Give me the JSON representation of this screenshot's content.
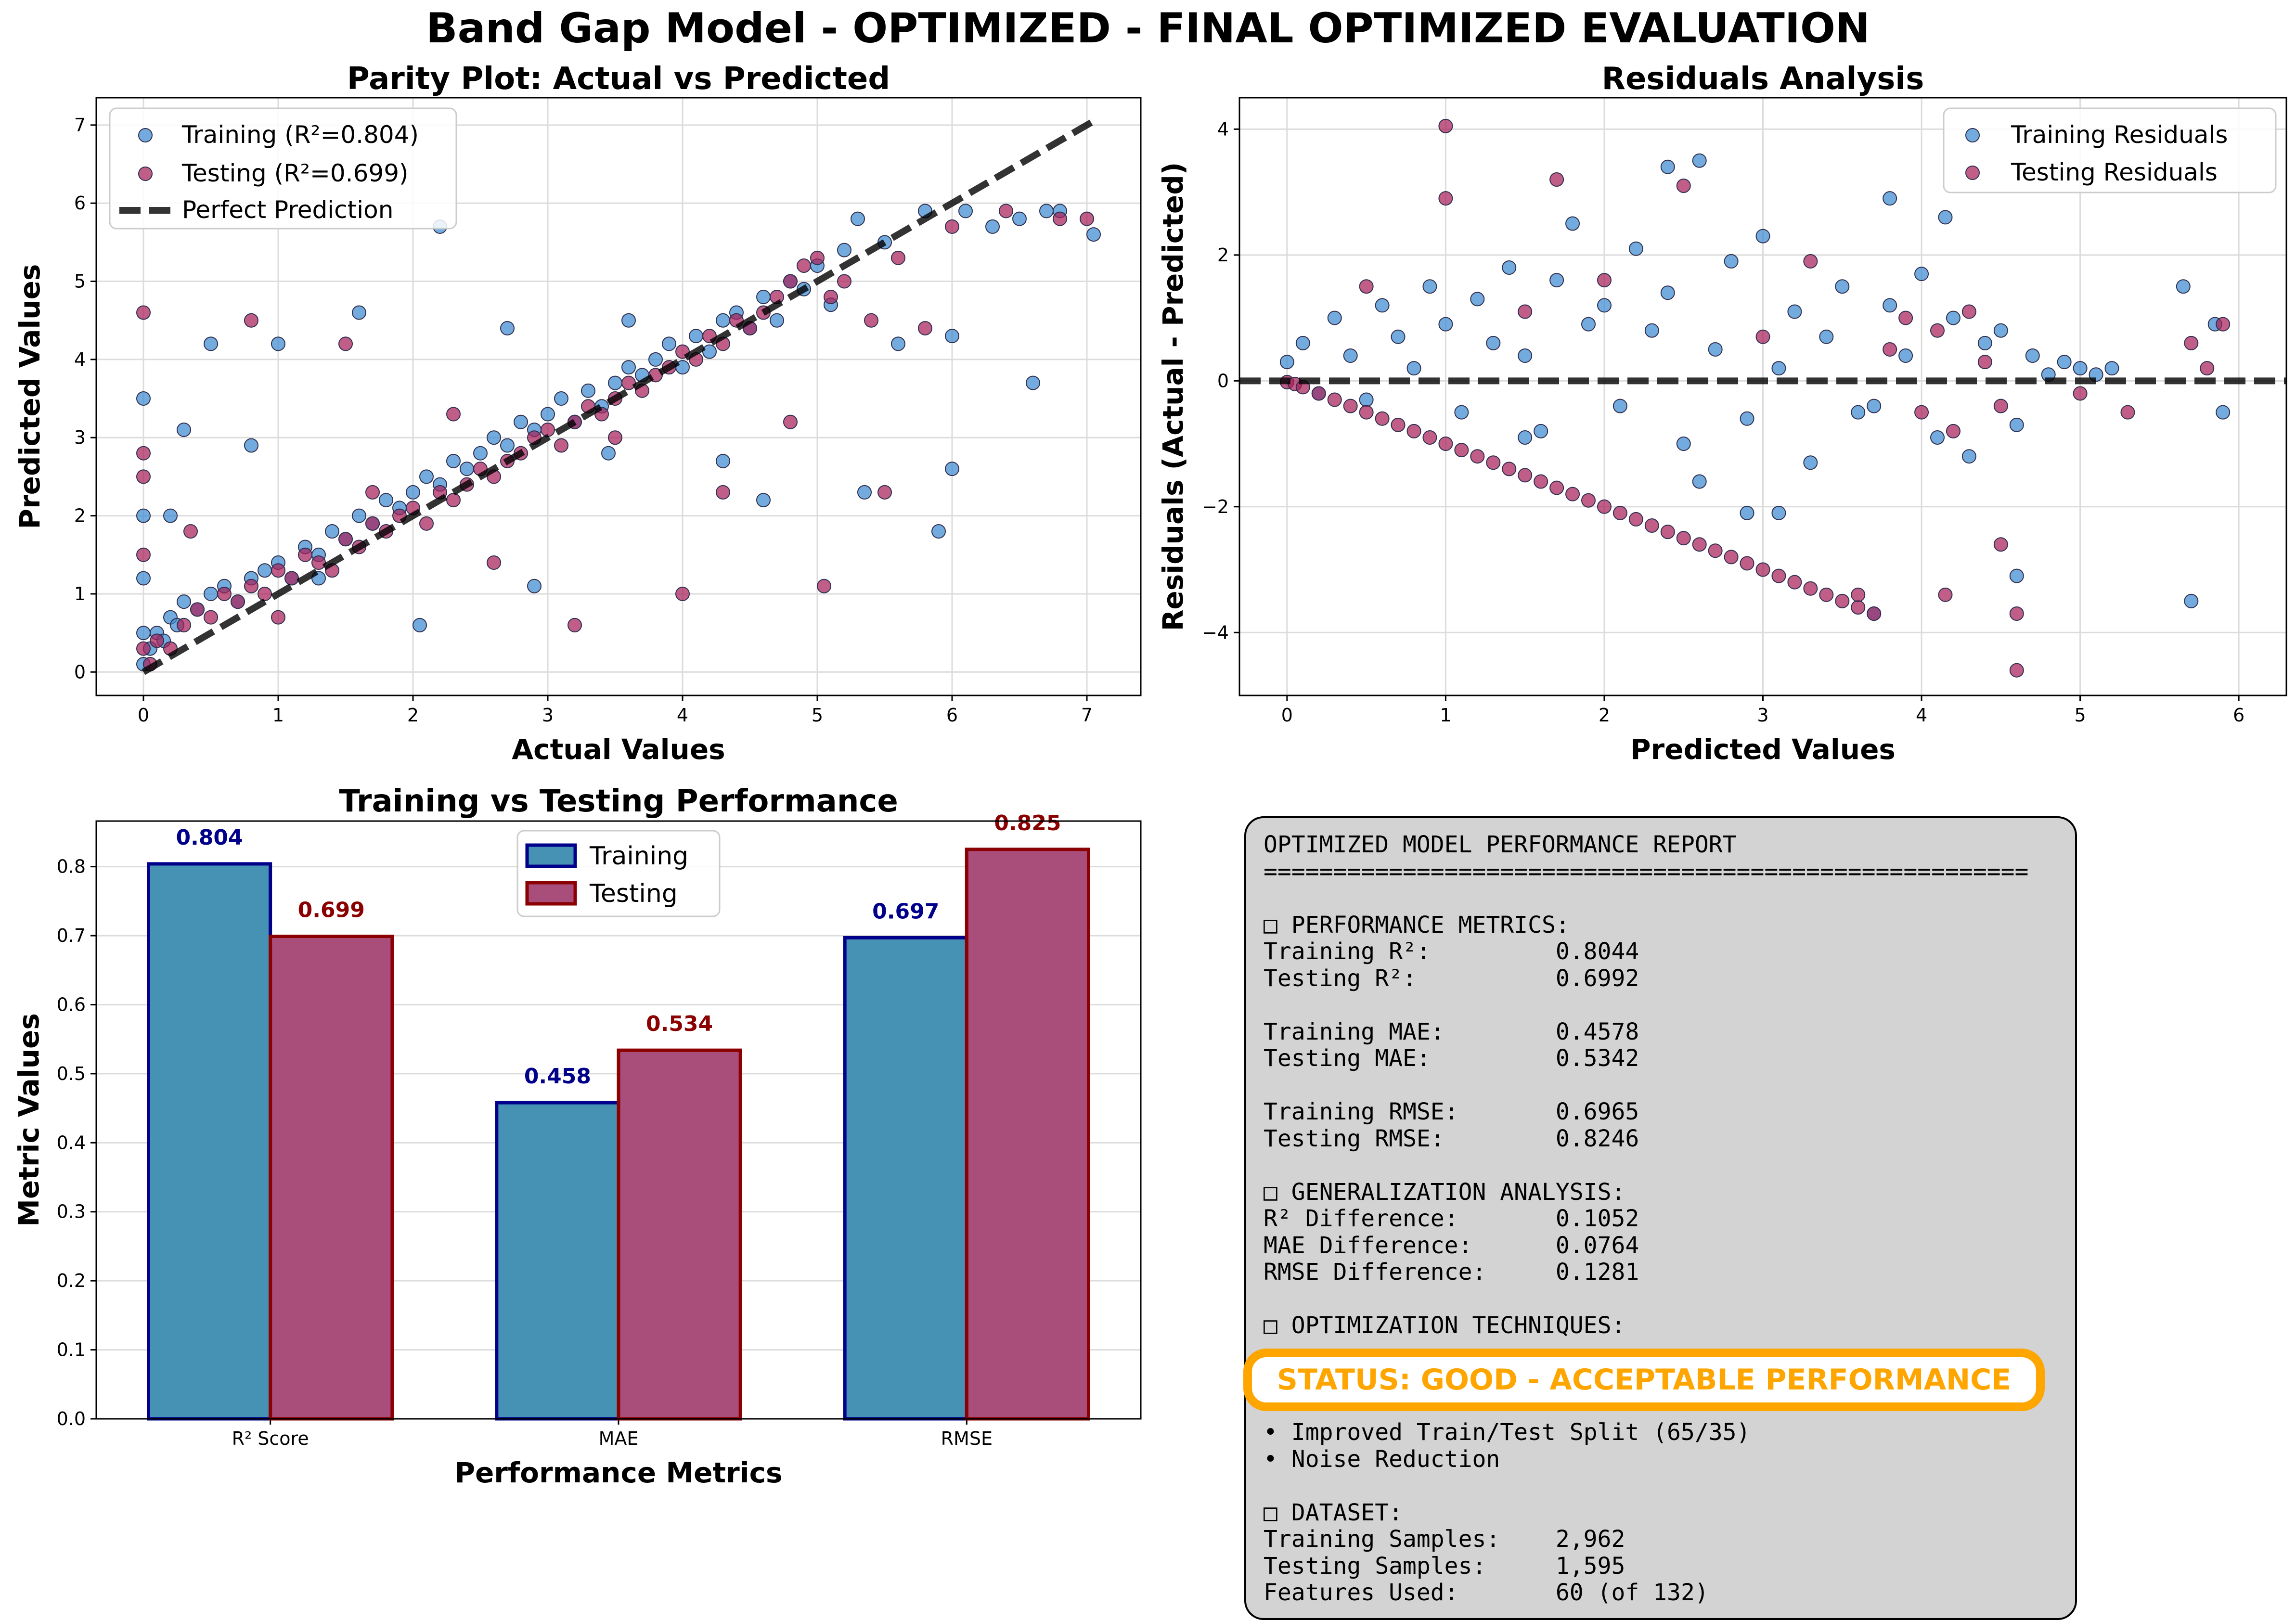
{
  "suptitle": "Band Gap Model - OPTIMIZED - FINAL OPTIMIZED EVALUATION",
  "colors": {
    "train": "#3d8ad1",
    "test": "#a8205a",
    "bar_train": "#4592b4",
    "bar_test": "#a94d7b",
    "train_label": "#00008b",
    "test_label": "#8b0000",
    "status": "#ffa500"
  },
  "chart_data": [
    {
      "type": "scatter",
      "title": "Parity Plot: Actual vs Predicted",
      "xlabel": "Actual Values",
      "ylabel": "Predicted Values",
      "xlim": [
        -0.35,
        7.4
      ],
      "ylim": [
        -0.3,
        7.35
      ],
      "xticks": [
        "0",
        "1",
        "2",
        "3",
        "4",
        "5",
        "6",
        "7"
      ],
      "yticks": [
        "0",
        "1",
        "2",
        "3",
        "4",
        "5",
        "6",
        "7"
      ],
      "grid": true,
      "legend": {
        "position": "top-left",
        "entries": [
          "Training (R²=0.804)",
          "Testing (R²=0.699)",
          "Perfect Prediction"
        ]
      },
      "reference_line": {
        "name": "Perfect Prediction",
        "x": [
          0,
          7.05
        ],
        "y": [
          0,
          7.05
        ],
        "style": "dashed"
      },
      "series": [
        {
          "name": "Training (R²=0.804)",
          "x": [
            0.0,
            0.0,
            0.0,
            0.0,
            0.0,
            0.05,
            0.1,
            0.15,
            0.2,
            0.25,
            0.3,
            0.4,
            0.5,
            0.6,
            0.7,
            0.8,
            0.9,
            1.0,
            1.1,
            1.2,
            1.3,
            1.4,
            1.5,
            1.6,
            1.7,
            1.8,
            1.9,
            2.0,
            2.1,
            2.2,
            2.3,
            2.4,
            2.5,
            2.6,
            2.7,
            2.8,
            2.9,
            3.0,
            3.1,
            3.2,
            3.3,
            3.4,
            3.5,
            3.6,
            3.7,
            3.8,
            3.9,
            4.0,
            4.1,
            4.2,
            4.3,
            4.4,
            4.5,
            4.6,
            4.7,
            4.8,
            4.9,
            5.0,
            5.1,
            5.2,
            5.3,
            5.5,
            5.6,
            5.8,
            6.0,
            6.1,
            6.3,
            6.5,
            6.7,
            6.8,
            7.05,
            0.3,
            0.5,
            1.0,
            1.6,
            2.2,
            2.7,
            3.6,
            4.3,
            5.35,
            6.0,
            6.6,
            0.2,
            0.8,
            1.3,
            2.05,
            2.9,
            3.45,
            4.6,
            5.9
          ],
          "y": [
            0.1,
            0.5,
            1.2,
            2.0,
            3.5,
            0.3,
            0.5,
            0.4,
            0.7,
            0.6,
            0.9,
            0.8,
            1.0,
            1.1,
            0.9,
            1.2,
            1.3,
            1.4,
            1.2,
            1.6,
            1.5,
            1.8,
            1.7,
            2.0,
            1.9,
            2.2,
            2.1,
            2.3,
            2.5,
            2.4,
            2.7,
            2.6,
            2.8,
            3.0,
            2.9,
            3.2,
            3.1,
            3.3,
            3.5,
            3.2,
            3.6,
            3.4,
            3.7,
            3.9,
            3.8,
            4.0,
            4.2,
            3.9,
            4.3,
            4.1,
            4.5,
            4.6,
            4.4,
            4.8,
            4.5,
            5.0,
            4.9,
            5.2,
            4.7,
            5.4,
            5.8,
            5.5,
            4.2,
            5.9,
            4.3,
            5.9,
            5.7,
            5.8,
            5.9,
            5.9,
            5.6,
            3.1,
            4.2,
            4.2,
            4.6,
            5.7,
            4.4,
            4.5,
            2.7,
            2.3,
            2.6,
            3.7,
            2.0,
            2.9,
            1.2,
            0.6,
            1.1,
            2.8,
            2.2,
            1.8
          ]
        },
        {
          "name": "Testing (R²=0.699)",
          "x": [
            0.0,
            0.0,
            0.0,
            0.0,
            0.05,
            0.1,
            0.2,
            0.3,
            0.4,
            0.5,
            0.6,
            0.7,
            0.8,
            0.9,
            1.0,
            1.1,
            1.2,
            1.3,
            1.4,
            1.5,
            1.6,
            1.7,
            1.8,
            1.9,
            2.0,
            2.1,
            2.2,
            2.3,
            2.4,
            2.5,
            2.6,
            2.7,
            2.8,
            2.9,
            3.0,
            3.1,
            3.2,
            3.3,
            3.4,
            3.5,
            3.6,
            3.7,
            3.8,
            3.9,
            4.0,
            4.1,
            4.2,
            4.3,
            4.4,
            4.5,
            4.6,
            4.7,
            4.8,
            4.9,
            5.0,
            5.1,
            5.2,
            5.4,
            5.6,
            5.8,
            6.0,
            6.4,
            6.8,
            7.0,
            0.0,
            0.8,
            1.5,
            2.3,
            3.5,
            4.3,
            5.05,
            5.5,
            0.35,
            1.0,
            1.7,
            2.6,
            3.2,
            4.0,
            4.8
          ],
          "y": [
            4.6,
            2.8,
            1.5,
            0.3,
            0.1,
            0.4,
            0.3,
            0.6,
            0.8,
            0.7,
            1.0,
            0.9,
            1.1,
            1.0,
            1.3,
            1.2,
            1.5,
            1.4,
            1.3,
            1.7,
            1.6,
            1.9,
            1.8,
            2.0,
            2.1,
            1.9,
            2.3,
            2.2,
            2.4,
            2.6,
            2.5,
            2.7,
            2.8,
            3.0,
            3.1,
            2.9,
            3.2,
            3.4,
            3.3,
            3.5,
            3.7,
            3.6,
            3.8,
            3.9,
            4.1,
            4.0,
            4.3,
            4.2,
            4.5,
            4.4,
            4.6,
            4.8,
            5.0,
            5.2,
            5.3,
            4.8,
            5.0,
            4.5,
            5.3,
            4.4,
            5.7,
            5.9,
            5.8,
            5.8,
            2.5,
            4.5,
            4.2,
            3.3,
            3.0,
            2.3,
            1.1,
            2.3,
            1.8,
            0.7,
            2.3,
            1.4,
            0.6,
            1.0,
            3.2
          ]
        }
      ]
    },
    {
      "type": "scatter",
      "title": "Residuals Analysis",
      "xlabel": "Predicted Values",
      "ylabel": "Residuals (Actual - Predicted)",
      "xlim": [
        -0.3,
        6.3
      ],
      "ylim": [
        -5.0,
        4.5
      ],
      "xticks": [
        "0",
        "1",
        "2",
        "3",
        "4",
        "5",
        "6"
      ],
      "yticks": [
        "−4",
        "−2",
        "0",
        "2",
        "4"
      ],
      "grid": true,
      "legend": {
        "position": "top-right",
        "entries": [
          "Training Residuals",
          "Testing Residuals"
        ]
      },
      "reference_line": {
        "x": [
          -0.3,
          6.3
        ],
        "y": [
          0,
          0
        ],
        "style": "dashed"
      },
      "series": [
        {
          "name": "Training Residuals",
          "x": [
            0.0,
            0.1,
            0.2,
            0.3,
            0.4,
            0.5,
            0.6,
            0.7,
            0.8,
            0.9,
            1.0,
            1.1,
            1.2,
            1.3,
            1.4,
            1.5,
            1.6,
            1.7,
            1.8,
            1.9,
            2.0,
            2.1,
            2.2,
            2.3,
            2.4,
            2.5,
            2.6,
            2.7,
            2.8,
            2.9,
            3.0,
            3.1,
            3.2,
            3.3,
            3.4,
            3.5,
            3.6,
            3.7,
            3.8,
            3.9,
            4.0,
            4.1,
            4.2,
            4.3,
            4.4,
            4.5,
            4.6,
            4.7,
            4.8,
            4.9,
            5.0,
            5.1,
            5.2,
            5.65,
            5.7,
            5.85,
            5.9,
            2.4,
            2.6,
            3.8,
            4.15,
            4.6,
            3.1,
            3.7,
            1.5,
            2.9
          ],
          "y": [
            0.3,
            0.6,
            -0.2,
            1.0,
            0.4,
            -0.3,
            1.2,
            0.7,
            0.2,
            1.5,
            0.9,
            -0.5,
            1.3,
            0.6,
            1.8,
            0.4,
            -0.8,
            1.6,
            2.5,
            0.9,
            1.2,
            -0.4,
            2.1,
            0.8,
            1.4,
            -1.0,
            3.5,
            0.5,
            1.9,
            -0.6,
            2.3,
            0.2,
            1.1,
            -1.3,
            0.7,
            1.5,
            -0.5,
            -3.7,
            1.2,
            0.4,
            1.7,
            -0.9,
            1.0,
            -1.2,
            0.6,
            0.8,
            -0.7,
            0.4,
            0.1,
            0.3,
            0.2,
            0.1,
            0.2,
            1.5,
            -3.5,
            0.9,
            -0.5,
            3.4,
            -1.6,
            2.9,
            2.6,
            -3.1,
            -2.1,
            -0.4,
            -0.9,
            -2.1
          ]
        },
        {
          "name": "Testing Residuals",
          "x": [
            0.0,
            0.05,
            0.1,
            0.2,
            0.3,
            0.4,
            0.5,
            0.6,
            0.7,
            0.8,
            0.9,
            1.0,
            1.1,
            1.2,
            1.3,
            1.4,
            1.5,
            1.6,
            1.7,
            1.8,
            1.9,
            2.0,
            2.1,
            2.2,
            2.3,
            2.4,
            2.5,
            2.6,
            2.7,
            2.8,
            2.9,
            3.0,
            3.1,
            3.2,
            3.3,
            3.4,
            3.5,
            3.6,
            3.7,
            3.8,
            3.9,
            4.0,
            4.1,
            4.2,
            4.3,
            4.4,
            4.5,
            4.6,
            5.0,
            5.3,
            5.7,
            5.8,
            5.9,
            0.5,
            1.0,
            1.5,
            2.0,
            2.5,
            3.0,
            3.3,
            3.6,
            4.15,
            4.5,
            4.6,
            1.0,
            1.7
          ],
          "y": [
            -0.02,
            -0.05,
            -0.1,
            -0.2,
            -0.3,
            -0.4,
            -0.5,
            -0.6,
            -0.7,
            -0.8,
            -0.9,
            -1.0,
            -1.1,
            -1.2,
            -1.3,
            -1.4,
            -1.5,
            -1.6,
            -1.7,
            -1.8,
            -1.9,
            -2.0,
            -2.1,
            -2.2,
            -2.3,
            -2.4,
            -2.5,
            -2.6,
            -2.7,
            -2.8,
            -2.9,
            -3.0,
            -3.1,
            -3.2,
            -3.3,
            -3.4,
            -3.5,
            -3.6,
            -3.7,
            0.5,
            1.0,
            -0.5,
            0.8,
            -0.8,
            1.1,
            0.3,
            -0.4,
            -4.6,
            -0.2,
            -0.5,
            0.6,
            0.2,
            0.9,
            1.5,
            2.9,
            1.1,
            1.6,
            3.1,
            0.7,
            1.9,
            -3.4,
            -3.4,
            -2.6,
            -3.7,
            4.05,
            3.2
          ]
        }
      ]
    },
    {
      "type": "bar",
      "title": "Training vs Testing Performance",
      "xlabel": "Performance Metrics",
      "ylabel": "Metric Values",
      "categories": [
        "R² Score",
        "MAE",
        "RMSE"
      ],
      "ylim": [
        0,
        0.866
      ],
      "yticks": [
        "0.0",
        "0.1",
        "0.2",
        "0.3",
        "0.4",
        "0.5",
        "0.6",
        "0.7",
        "0.8"
      ],
      "grid": true,
      "legend": {
        "position": "top-center",
        "entries": [
          "Training",
          "Testing"
        ]
      },
      "series": [
        {
          "name": "Training",
          "values": [
            0.804,
            0.458,
            0.697
          ],
          "labels": [
            "0.804",
            "0.458",
            "0.697"
          ]
        },
        {
          "name": "Testing",
          "values": [
            0.699,
            0.534,
            0.825
          ],
          "labels": [
            "0.699",
            "0.534",
            "0.825"
          ]
        }
      ]
    }
  ],
  "report": {
    "lines": [
      "OPTIMIZED MODEL PERFORMANCE REPORT",
      "=======================================================",
      "",
      "□ PERFORMANCE METRICS:",
      "Training R²:         0.8044",
      "Testing R²:          0.6992",
      "",
      "Training MAE:        0.4578",
      "Testing MAE:         0.5342",
      "",
      "Training RMSE:       0.6965",
      "Testing RMSE:        0.8246",
      "",
      "□ GENERALIZATION ANALYSIS:",
      "R² Difference:       0.1052",
      "MAE Difference:      0.0764",
      "RMSE Difference:     0.1281",
      "",
      "□ OPTIMIZATION TECHNIQUES:",
      "",
      "",
      "",
      "• Improved Train/Test Split (65/35)",
      "• Noise Reduction",
      "",
      "□ DATASET:",
      "Training Samples:    2,962",
      "Testing Samples:     1,595",
      "Features Used:       60 (of 132)"
    ],
    "status": "STATUS: GOOD - ACCEPTABLE PERFORMANCE"
  }
}
